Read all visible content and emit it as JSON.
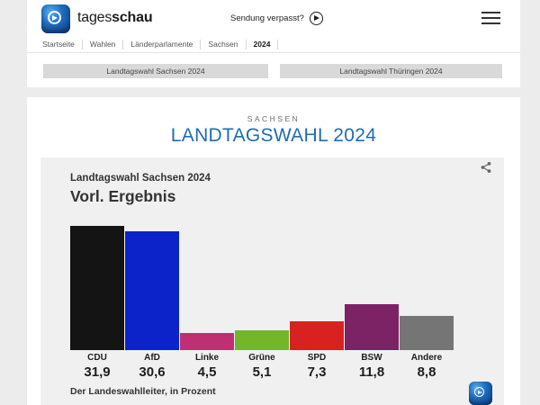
{
  "header": {
    "brand_first": "tages",
    "brand_second": "schau",
    "watch_label": "Sendung verpasst?",
    "breadcrumb": [
      "Startseite",
      "Wahlen",
      "Länderparlamente",
      "Sachsen",
      "2024"
    ]
  },
  "nav_buttons": [
    {
      "label": "Landtagswahl Sachsen 2024"
    },
    {
      "label": "Landtagswahl Thüringen 2024"
    }
  ],
  "main": {
    "kicker": "SACHSEN",
    "title": "LANDTAGSWAHL 2024",
    "title_color": "#1e6cb4"
  },
  "chart_data": {
    "type": "bar",
    "subtitle": "Landtagswahl Sachsen 2024",
    "title": "Vorl. Ergebnis",
    "categories": [
      "CDU",
      "AfD",
      "Linke",
      "Grüne",
      "SPD",
      "BSW",
      "Andere"
    ],
    "values": [
      31.9,
      30.6,
      4.5,
      5.1,
      7.3,
      11.8,
      8.8
    ],
    "value_labels": [
      "31,9",
      "30,6",
      "4,5",
      "5,1",
      "7,3",
      "11,8",
      "8,8"
    ],
    "colors": [
      "#141414",
      "#0b23c8",
      "#bd3173",
      "#74b62a",
      "#d82121",
      "#7c2365",
      "#757575"
    ],
    "ylim": [
      0,
      32
    ],
    "grid": false,
    "legend": "none",
    "source": "Der Landeswahlleiter, in Prozent"
  }
}
